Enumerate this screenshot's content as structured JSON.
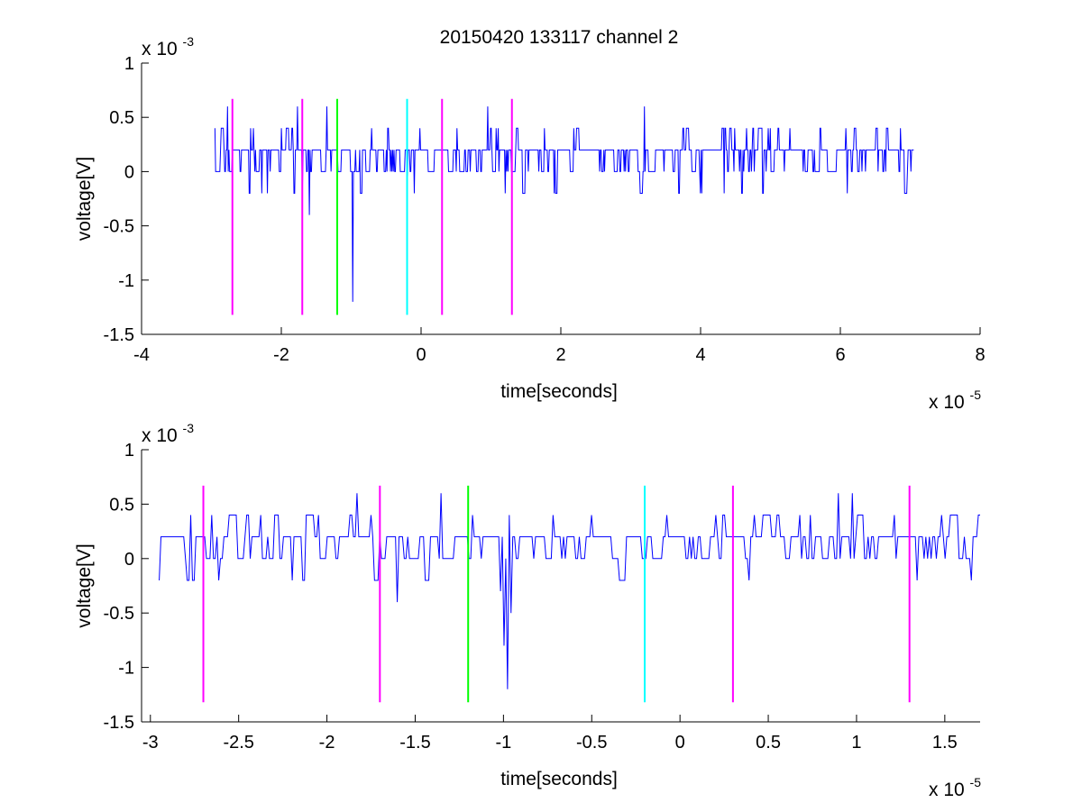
{
  "figure_title": "20150420 133117 channel 2",
  "chart_data": [
    {
      "type": "line",
      "title": "20150420 133117 channel 2",
      "xlabel": "time[seconds]",
      "ylabel": "voltage[V]",
      "x_multiplier": "x 10",
      "x_multiplier_exp": "-5",
      "y_multiplier": "x 10",
      "y_multiplier_exp": "-3",
      "xlim": [
        -4,
        8
      ],
      "ylim": [
        -1.5,
        1
      ],
      "x_ticks": [
        -4,
        -2,
        0,
        2,
        4,
        6,
        8
      ],
      "x_tick_labels": [
        "-4",
        "-2",
        "0",
        "2",
        "4",
        "6",
        "8"
      ],
      "y_ticks": [
        -1.5,
        -1,
        -0.5,
        0,
        0.5,
        1
      ],
      "y_tick_labels": [
        "-1.5",
        "-1",
        "-0.5",
        "0",
        "0.5",
        "1"
      ],
      "grid": false,
      "series": [
        {
          "color": "#0000ff",
          "x_range": [
            -2.95,
            7.05
          ],
          "samples": 1000,
          "noise_levels": [
            0,
            0.2
          ],
          "spikes": [
            {
              "x": -2.77,
              "y": 0.6
            },
            {
              "x": -2.4,
              "y": 0.4
            },
            {
              "x": -2.2,
              "y": -0.2
            },
            {
              "x": -1.77,
              "y": 0.6
            },
            {
              "x": -1.7,
              "y": -0.2
            },
            {
              "x": -1.6,
              "y": -0.4
            },
            {
              "x": -1.35,
              "y": 0.6
            },
            {
              "x": -0.98,
              "y": -1.2
            },
            {
              "x": -0.1,
              "y": -0.2
            },
            {
              "x": 0.95,
              "y": 0.6
            },
            {
              "x": 1.2,
              "y": -0.2
            },
            {
              "x": 3.2,
              "y": 0.6
            },
            {
              "x": 4.0,
              "y": -0.2
            },
            {
              "x": 5.0,
              "y": 0.4
            },
            {
              "x": 6.1,
              "y": -0.2
            }
          ]
        }
      ],
      "markers": [
        {
          "x": -2.7,
          "y": [
            -1.32,
            0.67
          ],
          "color": "#ff00ff"
        },
        {
          "x": -1.7,
          "y": [
            -1.32,
            0.67
          ],
          "color": "#ff00ff"
        },
        {
          "x": -1.2,
          "y": [
            -1.32,
            0.67
          ],
          "color": "#00ff00"
        },
        {
          "x": -0.2,
          "y": [
            -1.32,
            0.67
          ],
          "color": "#00ffff"
        },
        {
          "x": 0.3,
          "y": [
            -1.32,
            0.67
          ],
          "color": "#ff00ff"
        },
        {
          "x": 1.3,
          "y": [
            -1.32,
            0.67
          ],
          "color": "#ff00ff"
        }
      ]
    },
    {
      "type": "line",
      "xlabel": "time[seconds]",
      "ylabel": "voltage[V]",
      "x_multiplier": "x 10",
      "x_multiplier_exp": "-5",
      "y_multiplier": "x 10",
      "y_multiplier_exp": "-3",
      "xlim": [
        -3.05,
        1.7
      ],
      "ylim": [
        -1.5,
        1
      ],
      "x_ticks": [
        -3,
        -2.5,
        -2,
        -1.5,
        -1,
        -0.5,
        0,
        0.5,
        1,
        1.5
      ],
      "x_tick_labels": [
        "-3",
        "-2.5",
        "-2",
        "-1.5",
        "-1",
        "-0.5",
        "0",
        "0.5",
        "1",
        "1.5"
      ],
      "y_ticks": [
        -1.5,
        -1,
        -0.5,
        0,
        0.5,
        1
      ],
      "y_tick_labels": [
        "-1.5",
        "-1",
        "-0.5",
        "0",
        "0.5",
        "1"
      ],
      "grid": false,
      "series": [
        {
          "color": "#0000ff",
          "x_range": [
            -2.95,
            1.7
          ],
          "samples": 470,
          "noise_levels": [
            0,
            0.2
          ],
          "spikes": [
            {
              "x": -2.95,
              "y": -0.2
            },
            {
              "x": -2.77,
              "y": 0.4
            },
            {
              "x": -2.65,
              "y": 0.4
            },
            {
              "x": -2.61,
              "y": -0.2
            },
            {
              "x": -2.37,
              "y": 0.4
            },
            {
              "x": -2.2,
              "y": -0.2
            },
            {
              "x": -1.83,
              "y": 0.6
            },
            {
              "x": -1.75,
              "y": 0.4
            },
            {
              "x": -1.71,
              "y": -0.2
            },
            {
              "x": -1.6,
              "y": -0.4
            },
            {
              "x": -1.35,
              "y": 0.6
            },
            {
              "x": -1.18,
              "y": 0.4
            },
            {
              "x": -1.02,
              "y": -0.3
            },
            {
              "x": -1.0,
              "y": -0.8
            },
            {
              "x": -0.98,
              "y": -1.2
            },
            {
              "x": -0.96,
              "y": -0.5
            },
            {
              "x": -0.5,
              "y": 0.4
            },
            {
              "x": 0.2,
              "y": 0.4
            },
            {
              "x": 0.68,
              "y": 0.4
            },
            {
              "x": 0.9,
              "y": 0.6
            },
            {
              "x": 0.98,
              "y": 0.6
            },
            {
              "x": 1.34,
              "y": -0.2
            },
            {
              "x": 1.48,
              "y": 0.4
            },
            {
              "x": 1.65,
              "y": -0.2
            }
          ]
        }
      ],
      "markers": [
        {
          "x": -2.7,
          "y": [
            -1.32,
            0.67
          ],
          "color": "#ff00ff"
        },
        {
          "x": -1.7,
          "y": [
            -1.32,
            0.67
          ],
          "color": "#ff00ff"
        },
        {
          "x": -1.2,
          "y": [
            -1.32,
            0.67
          ],
          "color": "#00ff00"
        },
        {
          "x": -0.2,
          "y": [
            -1.32,
            0.67
          ],
          "color": "#00ffff"
        },
        {
          "x": 0.3,
          "y": [
            -1.32,
            0.67
          ],
          "color": "#ff00ff"
        },
        {
          "x": 1.3,
          "y": [
            -1.32,
            0.67
          ],
          "color": "#ff00ff"
        }
      ]
    }
  ]
}
